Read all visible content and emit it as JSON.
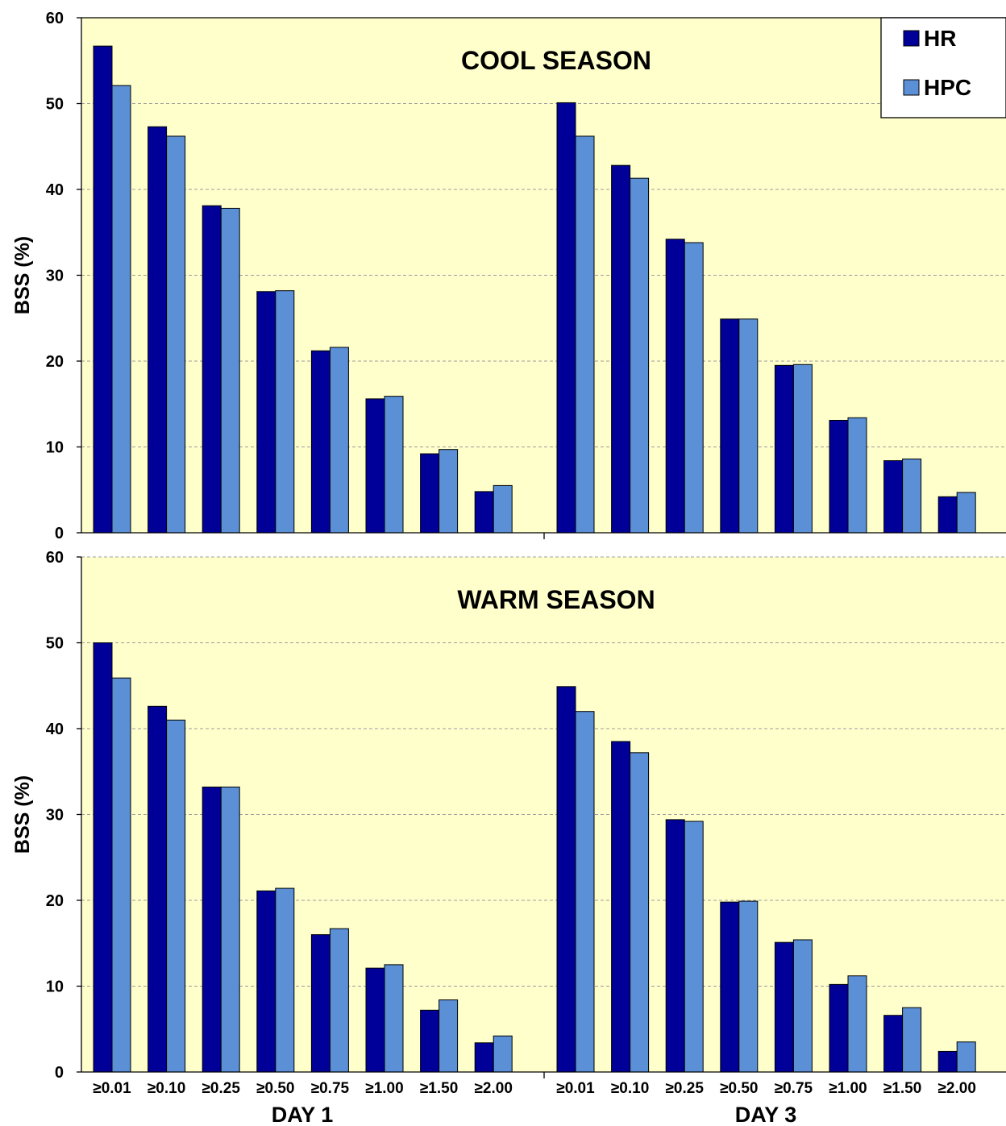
{
  "colors": {
    "plot_bg": "#FFFFCC",
    "hr": "#000099",
    "hpc": "#5B8FD6",
    "grid": "#9c9c9c"
  },
  "chart_data": [
    {
      "type": "bar",
      "title": "COOL SEASON",
      "ylabel": "BSS (%)",
      "ylim": [
        0,
        60
      ],
      "yticks": [
        "0",
        "10",
        "20",
        "30",
        "40",
        "50",
        "60"
      ],
      "grid": "horizontal dashed",
      "legend": "top-right",
      "groups": [
        {
          "label": "",
          "categories": [
            "≥0.01",
            "≥0.10",
            "≥0.25",
            "≥0.50",
            "≥0.75",
            "≥1.00",
            "≥1.50",
            "≥2.00"
          ],
          "series": [
            {
              "name": "HR",
              "values": [
                56.7,
                47.3,
                38.1,
                28.1,
                21.2,
                15.6,
                9.2,
                4.8
              ]
            },
            {
              "name": "HPC",
              "values": [
                52.1,
                46.2,
                37.8,
                28.2,
                21.6,
                15.9,
                9.7,
                5.5
              ]
            }
          ]
        },
        {
          "label": "",
          "categories": [
            "≥0.01",
            "≥0.10",
            "≥0.25",
            "≥0.50",
            "≥0.75",
            "≥1.00",
            "≥1.50",
            "≥2.00"
          ],
          "series": [
            {
              "name": "HR",
              "values": [
                50.1,
                42.8,
                34.2,
                24.9,
                19.5,
                13.1,
                8.4,
                4.2
              ]
            },
            {
              "name": "HPC",
              "values": [
                46.2,
                41.3,
                33.8,
                24.9,
                19.6,
                13.4,
                8.6,
                4.7
              ]
            }
          ]
        }
      ]
    },
    {
      "type": "bar",
      "title": "WARM SEASON",
      "ylabel": "BSS (%)",
      "ylim": [
        0,
        60
      ],
      "yticks": [
        "0",
        "10",
        "20",
        "30",
        "40",
        "50",
        "60"
      ],
      "grid": "horizontal dashed",
      "groups": [
        {
          "label": "DAY 1",
          "categories": [
            "≥0.01",
            "≥0.10",
            "≥0.25",
            "≥0.50",
            "≥0.75",
            "≥1.00",
            "≥1.50",
            "≥2.00"
          ],
          "series": [
            {
              "name": "HR",
              "values": [
                50.0,
                42.6,
                33.2,
                21.1,
                16.0,
                12.1,
                7.2,
                3.4
              ]
            },
            {
              "name": "HPC",
              "values": [
                45.9,
                41.0,
                33.2,
                21.4,
                16.7,
                12.5,
                8.4,
                4.2
              ]
            }
          ]
        },
        {
          "label": "DAY 3",
          "categories": [
            "≥0.01",
            "≥0.10",
            "≥0.25",
            "≥0.50",
            "≥0.75",
            "≥1.00",
            "≥1.50",
            "≥2.00"
          ],
          "series": [
            {
              "name": "HR",
              "values": [
                44.9,
                38.5,
                29.4,
                19.8,
                15.1,
                10.2,
                6.6,
                2.4
              ]
            },
            {
              "name": "HPC",
              "values": [
                42.0,
                37.2,
                29.2,
                19.9,
                15.4,
                11.2,
                7.5,
                3.5
              ]
            }
          ]
        }
      ]
    }
  ]
}
